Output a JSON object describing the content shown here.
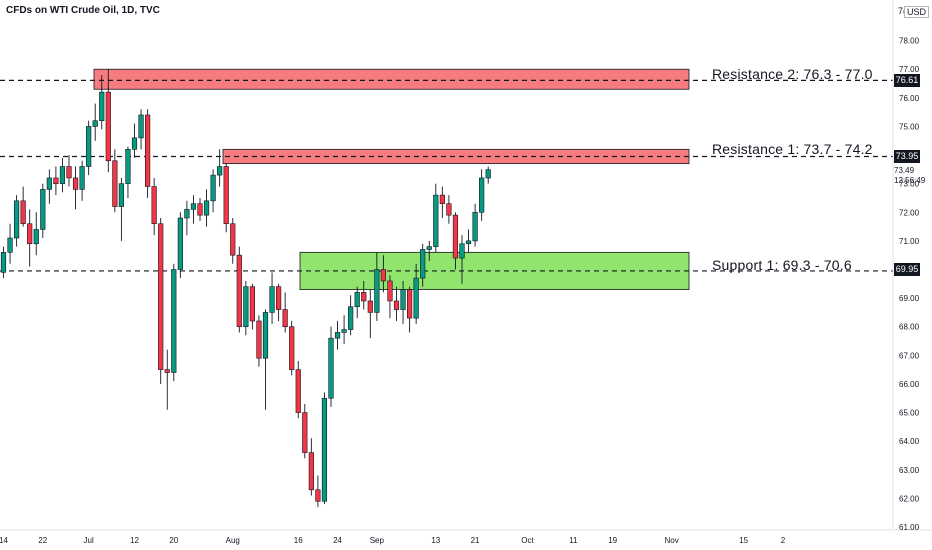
{
  "header": {
    "title": "CFDs on WTI Crude Oil, 1D, TVC",
    "currency": "USD",
    "currency_frag": "7("
  },
  "levels": {
    "resistance2": {
      "label": "Resistance 2: 76.3 - 77.0",
      "low": 76.3,
      "high": 77.0,
      "line": 76.61,
      "tag": "76.61"
    },
    "resistance1": {
      "label": "Resistance 1: 73.7 - 74.2",
      "low": 73.7,
      "high": 74.2,
      "line": 73.95,
      "tag": "73.95"
    },
    "support1": {
      "label": "Support 1: 69.3 - 70.6",
      "low": 69.3,
      "high": 70.6,
      "line": 69.95,
      "tag": "69.95"
    }
  },
  "last_price": {
    "price": "73.49",
    "countdown": "12:56:49"
  },
  "colors": {
    "up": "#089981",
    "down": "#f23645",
    "resistance_zone": "#f77c80",
    "support_zone": "#91e56e",
    "text": "#131722"
  },
  "chart_data": {
    "type": "candlestick",
    "title": "CFDs on WTI Crude Oil, 1D, TVC",
    "ylim": [
      61.0,
      79.0
    ],
    "y_ticks": [
      "78.00",
      "77.00",
      "76.00",
      "75.00",
      "74.00",
      "73.00",
      "72.00",
      "71.00",
      "70.00",
      "69.00",
      "68.00",
      "67.00",
      "66.00",
      "65.00",
      "64.00",
      "63.00",
      "62.00",
      "61.00"
    ],
    "x_ticks": [
      {
        "label": "14",
        "day": 0
      },
      {
        "label": "22",
        "day": 6
      },
      {
        "label": "Jul",
        "day": 13
      },
      {
        "label": "12",
        "day": 20
      },
      {
        "label": "20",
        "day": 26
      },
      {
        "label": "Aug",
        "day": 35
      },
      {
        "label": "16",
        "day": 45
      },
      {
        "label": "24",
        "day": 51
      },
      {
        "label": "Sep",
        "day": 57
      },
      {
        "label": "13",
        "day": 66
      },
      {
        "label": "21",
        "day": 72
      },
      {
        "label": "Oct",
        "day": 80
      },
      {
        "label": "11",
        "day": 87
      },
      {
        "label": "19",
        "day": 93
      },
      {
        "label": "Nov",
        "day": 102
      },
      {
        "label": "15",
        "day": 113
      },
      {
        "label": "2",
        "day": 119
      }
    ],
    "candles": [
      {
        "o": 69.9,
        "h": 70.8,
        "l": 69.7,
        "c": 70.6
      },
      {
        "o": 70.6,
        "h": 71.6,
        "l": 70.2,
        "c": 71.1
      },
      {
        "o": 71.1,
        "h": 72.6,
        "l": 70.8,
        "c": 72.4
      },
      {
        "o": 72.4,
        "h": 72.9,
        "l": 71.5,
        "c": 71.6
      },
      {
        "o": 71.6,
        "h": 72.1,
        "l": 70.1,
        "c": 70.9
      },
      {
        "o": 70.9,
        "h": 72.0,
        "l": 70.5,
        "c": 71.4
      },
      {
        "o": 71.4,
        "h": 73.0,
        "l": 71.1,
        "c": 72.8
      },
      {
        "o": 72.8,
        "h": 73.5,
        "l": 72.3,
        "c": 73.2
      },
      {
        "o": 73.2,
        "h": 73.6,
        "l": 72.6,
        "c": 73.0
      },
      {
        "o": 73.0,
        "h": 73.9,
        "l": 72.7,
        "c": 73.6
      },
      {
        "o": 73.6,
        "h": 74.0,
        "l": 72.9,
        "c": 73.2
      },
      {
        "o": 73.2,
        "h": 73.6,
        "l": 72.1,
        "c": 72.8
      },
      {
        "o": 72.8,
        "h": 73.8,
        "l": 72.4,
        "c": 73.6
      },
      {
        "o": 73.6,
        "h": 75.2,
        "l": 73.3,
        "c": 75.0
      },
      {
        "o": 75.0,
        "h": 75.8,
        "l": 74.5,
        "c": 75.2
      },
      {
        "o": 75.2,
        "h": 76.8,
        "l": 74.9,
        "c": 76.2
      },
      {
        "o": 76.2,
        "h": 77.0,
        "l": 73.4,
        "c": 73.8
      },
      {
        "o": 73.8,
        "h": 74.2,
        "l": 72.0,
        "c": 72.2
      },
      {
        "o": 72.2,
        "h": 73.2,
        "l": 71.0,
        "c": 73.0
      },
      {
        "o": 73.0,
        "h": 74.3,
        "l": 72.5,
        "c": 74.2
      },
      {
        "o": 74.2,
        "h": 75.1,
        "l": 73.9,
        "c": 74.6
      },
      {
        "o": 74.6,
        "h": 75.6,
        "l": 74.2,
        "c": 75.4
      },
      {
        "o": 75.4,
        "h": 75.6,
        "l": 72.5,
        "c": 72.9
      },
      {
        "o": 72.9,
        "h": 73.2,
        "l": 71.2,
        "c": 71.6
      },
      {
        "o": 71.6,
        "h": 71.8,
        "l": 66.0,
        "c": 66.5
      },
      {
        "o": 66.5,
        "h": 67.2,
        "l": 65.1,
        "c": 66.4
      },
      {
        "o": 66.4,
        "h": 70.2,
        "l": 66.1,
        "c": 70.0
      },
      {
        "o": 70.0,
        "h": 72.0,
        "l": 69.7,
        "c": 71.8
      },
      {
        "o": 71.8,
        "h": 72.4,
        "l": 71.2,
        "c": 72.1
      },
      {
        "o": 72.1,
        "h": 72.6,
        "l": 71.6,
        "c": 72.3
      },
      {
        "o": 72.3,
        "h": 72.5,
        "l": 71.7,
        "c": 71.9
      },
      {
        "o": 71.9,
        "h": 72.8,
        "l": 71.5,
        "c": 72.4
      },
      {
        "o": 72.4,
        "h": 73.5,
        "l": 72.0,
        "c": 73.3
      },
      {
        "o": 73.3,
        "h": 74.2,
        "l": 72.9,
        "c": 73.6
      },
      {
        "o": 73.6,
        "h": 73.7,
        "l": 71.3,
        "c": 71.6
      },
      {
        "o": 71.6,
        "h": 71.8,
        "l": 70.2,
        "c": 70.5
      },
      {
        "o": 70.5,
        "h": 70.8,
        "l": 67.8,
        "c": 68.0
      },
      {
        "o": 68.0,
        "h": 69.6,
        "l": 67.7,
        "c": 69.4
      },
      {
        "o": 69.4,
        "h": 69.5,
        "l": 67.9,
        "c": 68.2
      },
      {
        "o": 68.2,
        "h": 68.4,
        "l": 66.6,
        "c": 66.9
      },
      {
        "o": 66.9,
        "h": 68.6,
        "l": 65.1,
        "c": 68.5
      },
      {
        "o": 68.5,
        "h": 69.9,
        "l": 68.1,
        "c": 69.4
      },
      {
        "o": 69.4,
        "h": 69.5,
        "l": 68.2,
        "c": 68.6
      },
      {
        "o": 68.6,
        "h": 69.2,
        "l": 67.8,
        "c": 68.0
      },
      {
        "o": 68.0,
        "h": 68.2,
        "l": 66.3,
        "c": 66.5
      },
      {
        "o": 66.5,
        "h": 66.8,
        "l": 64.8,
        "c": 65.0
      },
      {
        "o": 65.0,
        "h": 65.3,
        "l": 63.4,
        "c": 63.6
      },
      {
        "o": 63.6,
        "h": 64.1,
        "l": 62.1,
        "c": 62.3
      },
      {
        "o": 62.3,
        "h": 62.8,
        "l": 61.7,
        "c": 61.9
      },
      {
        "o": 61.9,
        "h": 65.7,
        "l": 61.8,
        "c": 65.5
      },
      {
        "o": 65.5,
        "h": 68.0,
        "l": 65.2,
        "c": 67.6
      },
      {
        "o": 67.6,
        "h": 68.2,
        "l": 67.2,
        "c": 67.8
      },
      {
        "o": 67.8,
        "h": 68.4,
        "l": 67.4,
        "c": 67.9
      },
      {
        "o": 67.9,
        "h": 69.1,
        "l": 67.7,
        "c": 68.7
      },
      {
        "o": 68.7,
        "h": 69.4,
        "l": 68.3,
        "c": 69.2
      },
      {
        "o": 69.2,
        "h": 69.6,
        "l": 68.6,
        "c": 68.9
      },
      {
        "o": 68.9,
        "h": 69.3,
        "l": 67.6,
        "c": 68.5
      },
      {
        "o": 68.5,
        "h": 70.6,
        "l": 68.2,
        "c": 70.0
      },
      {
        "o": 70.0,
        "h": 70.5,
        "l": 69.2,
        "c": 69.6
      },
      {
        "o": 69.6,
        "h": 69.8,
        "l": 68.3,
        "c": 68.9
      },
      {
        "o": 68.9,
        "h": 69.4,
        "l": 68.2,
        "c": 68.6
      },
      {
        "o": 68.6,
        "h": 69.6,
        "l": 68.1,
        "c": 69.3
      },
      {
        "o": 69.3,
        "h": 69.4,
        "l": 67.8,
        "c": 68.3
      },
      {
        "o": 68.3,
        "h": 70.2,
        "l": 68.1,
        "c": 69.7
      },
      {
        "o": 69.7,
        "h": 70.9,
        "l": 69.4,
        "c": 70.7
      },
      {
        "o": 70.7,
        "h": 71.0,
        "l": 70.3,
        "c": 70.8
      },
      {
        "o": 70.8,
        "h": 73.0,
        "l": 70.6,
        "c": 72.6
      },
      {
        "o": 72.6,
        "h": 72.9,
        "l": 71.8,
        "c": 72.3
      },
      {
        "o": 72.3,
        "h": 72.6,
        "l": 71.6,
        "c": 71.9
      },
      {
        "o": 71.9,
        "h": 72.0,
        "l": 70.0,
        "c": 70.4
      },
      {
        "o": 70.4,
        "h": 71.2,
        "l": 69.5,
        "c": 70.9
      },
      {
        "o": 70.9,
        "h": 71.4,
        "l": 70.6,
        "c": 71.0
      },
      {
        "o": 71.0,
        "h": 72.3,
        "l": 70.8,
        "c": 72.0
      },
      {
        "o": 72.0,
        "h": 73.5,
        "l": 71.7,
        "c": 73.2
      },
      {
        "o": 73.2,
        "h": 73.6,
        "l": 73.0,
        "c": 73.49
      }
    ]
  }
}
